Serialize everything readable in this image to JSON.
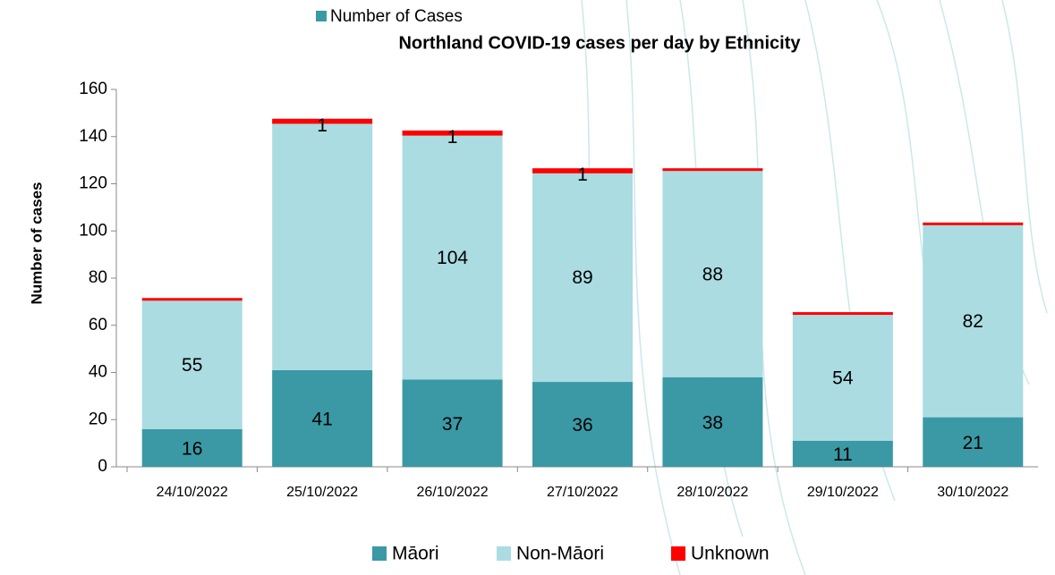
{
  "chart_data": {
    "type": "stacked_bar",
    "legend_title": "Number of Cases",
    "title": "Northland COVID-19 cases per day by Ethnicity",
    "y_label": "Number of cases",
    "categories": [
      "24/10/2022",
      "25/10/2022",
      "26/10/2022",
      "27/10/2022",
      "28/10/2022",
      "29/10/2022",
      "30/10/2022"
    ],
    "series": [
      {
        "name": "Māori",
        "color": "#3a99a5",
        "values": [
          16,
          41,
          37,
          36,
          38,
          11,
          21
        ]
      },
      {
        "name": "Non-Māori",
        "color": "#aadce2",
        "values": [
          55,
          105,
          104,
          89,
          88,
          54,
          82
        ],
        "value_labels": [
          "55",
          null,
          "104",
          "89",
          "88",
          "54",
          "82"
        ]
      },
      {
        "name": "Unknown",
        "color": "#ff0000",
        "values": [
          0,
          1,
          1,
          1,
          0,
          0,
          0
        ],
        "value_labels": [
          null,
          "1",
          "1",
          "1",
          null,
          null,
          null
        ]
      }
    ],
    "ylim": [
      0,
      160
    ],
    "yticks": [
      0,
      20,
      40,
      60,
      80,
      100,
      120,
      140,
      160
    ],
    "legend": "bottom"
  }
}
